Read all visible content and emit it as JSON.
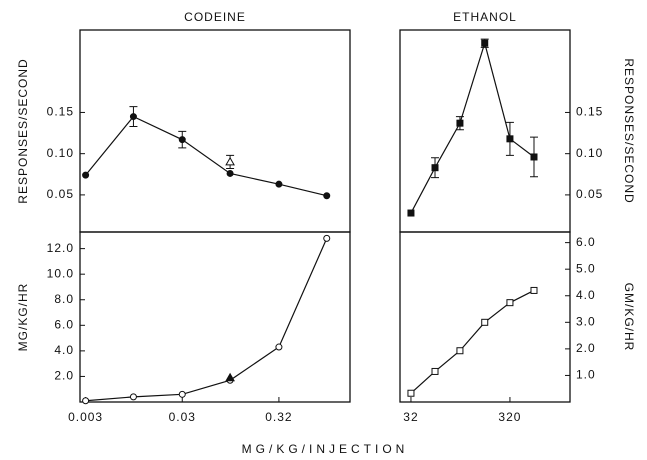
{
  "xlabel": "MG/KG/INJECTION",
  "chart_data": [
    {
      "type": "line",
      "title": "CODEINE",
      "ylabel": "RESPONSES/SECOND",
      "xscale": "log",
      "x": [
        0.0032,
        0.01,
        0.032,
        0.1,
        0.32,
        1.0
      ],
      "xlim": [
        0.0028,
        1.74
      ],
      "ylim": [
        0.005,
        0.25
      ],
      "yticks": [
        0.05,
        {
          "value": 0.1,
          "label": "0.10"
        },
        0.15
      ],
      "series": [
        {
          "color": "#111111",
          "marker": "circle",
          "filled": true,
          "line": true,
          "values": [
            0.074,
            0.145,
            0.117,
            0.076,
            0.063,
            0.049
          ],
          "errors": [
            null,
            0.012,
            0.01,
            null,
            null,
            null
          ]
        },
        {
          "color": "#111111",
          "marker": "triangle",
          "filled": false,
          "line": false,
          "values": [
            null,
            null,
            null,
            0.09,
            null,
            null
          ],
          "errors": [
            null,
            null,
            null,
            0.008,
            null,
            null
          ]
        }
      ]
    },
    {
      "type": "line",
      "title": "ETHANOL",
      "ylabel": "RESPONSES/SECOND",
      "xscale": "log",
      "x": [
        32,
        56,
        100,
        178,
        320,
        560
      ],
      "xlim": [
        24.8,
        1294
      ],
      "ylim": [
        0.005,
        0.25
      ],
      "yticks": [
        0.05,
        {
          "value": 0.1,
          "label": "0.10"
        },
        0.15
      ],
      "series": [
        {
          "color": "#111111",
          "marker": "square",
          "filled": true,
          "line": true,
          "values": [
            0.028,
            0.083,
            0.137,
            0.234,
            0.118,
            0.096
          ],
          "errors": [
            null,
            0.012,
            0.008,
            0.005,
            0.02,
            0.024
          ]
        }
      ]
    },
    {
      "type": "line",
      "ylabel": "MG/KG/HR",
      "xscale": "log",
      "x": [
        0.0032,
        0.01,
        0.032,
        0.1,
        0.32,
        1.0
      ],
      "xlim": [
        0.0028,
        1.74
      ],
      "xticks": [
        {
          "value": 0.0032,
          "label": "0.003"
        },
        {
          "value": 0.032,
          "label": "0.03"
        },
        0.32
      ],
      "ylim": [
        0,
        13.3
      ],
      "yticks": [
        {
          "value": 2,
          "label": "2.0"
        },
        {
          "value": 4,
          "label": "4.0"
        },
        {
          "value": 6,
          "label": "6.0"
        },
        {
          "value": 8,
          "label": "8.0"
        },
        {
          "value": 10,
          "label": "10.0"
        },
        {
          "value": 12,
          "label": "12.0"
        }
      ],
      "series": [
        {
          "color": "#111111",
          "marker": "circle",
          "filled": false,
          "line": true,
          "values": [
            0.1,
            0.4,
            0.6,
            1.7,
            4.3,
            12.8
          ]
        },
        {
          "color": "#111111",
          "marker": "triangle",
          "filled": true,
          "line": false,
          "values": [
            null,
            null,
            null,
            1.9,
            null,
            null
          ]
        }
      ]
    },
    {
      "type": "line",
      "ylabel": "GM/KG/HR",
      "xscale": "log",
      "x": [
        32,
        56,
        100,
        178,
        320,
        560
      ],
      "xlim": [
        24.8,
        1294
      ],
      "xticks": [
        32,
        320
      ],
      "ylim": [
        0,
        6.4
      ],
      "yticks": [
        {
          "value": 1,
          "label": "1.0"
        },
        {
          "value": 2,
          "label": "2.0"
        },
        {
          "value": 3,
          "label": "3.0"
        },
        {
          "value": 4,
          "label": "4.0"
        },
        {
          "value": 5,
          "label": "5.0"
        },
        {
          "value": 6,
          "label": "6.0"
        }
      ],
      "series": [
        {
          "color": "#111111",
          "marker": "square",
          "filled": false,
          "line": true,
          "values": [
            0.33,
            1.15,
            1.93,
            3.0,
            3.74,
            4.2
          ]
        }
      ]
    }
  ]
}
